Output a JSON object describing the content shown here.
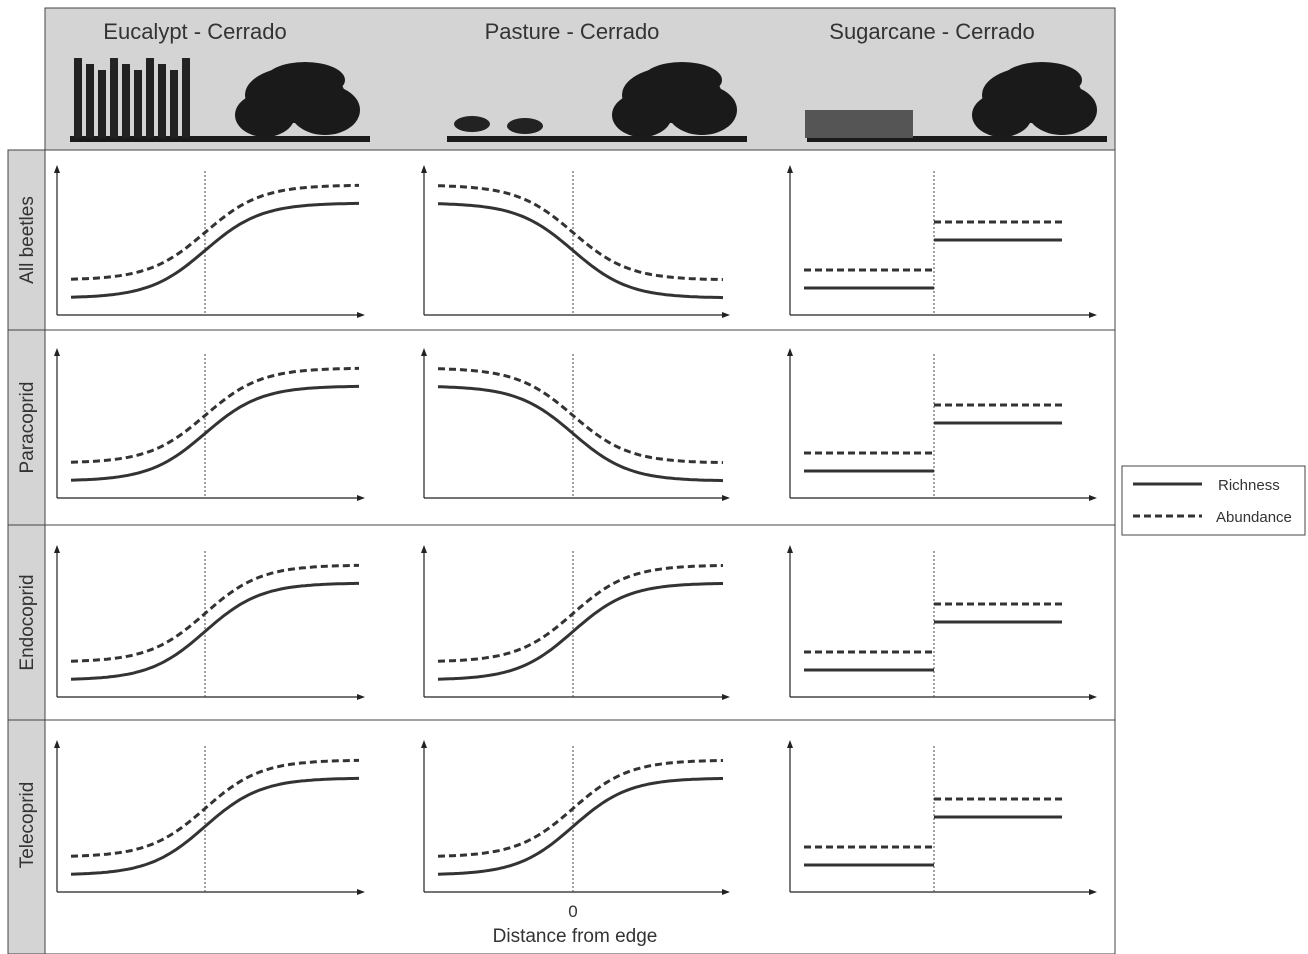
{
  "columns": [
    {
      "title": "Eucalypt - Cerrado"
    },
    {
      "title": "Pasture - Cerrado"
    },
    {
      "title": "Sugarcane - Cerrado"
    }
  ],
  "rows": [
    {
      "label": "All beetles"
    },
    {
      "label": "Paracoprid"
    },
    {
      "label": "Endocoprid"
    },
    {
      "label": "Telecoprid"
    }
  ],
  "x_axis": {
    "tick": "0",
    "label": "Distance from edge"
  },
  "legend": [
    {
      "label": "Richness"
    },
    {
      "label": "Abundance"
    }
  ]
}
